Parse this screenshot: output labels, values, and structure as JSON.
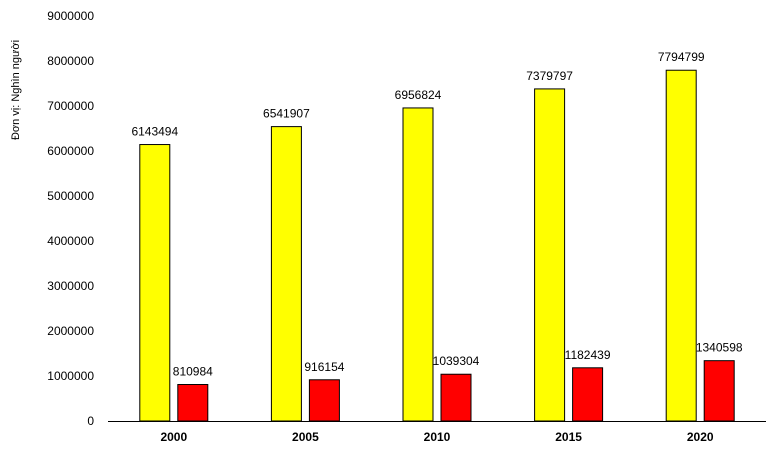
{
  "chart_data": {
    "type": "bar",
    "title": "",
    "xlabel": "",
    "ylabel": "Đơn vị: Nghìn người",
    "ylim": [
      0,
      9000000
    ],
    "yticks": [
      0,
      1000000,
      2000000,
      3000000,
      4000000,
      5000000,
      6000000,
      7000000,
      8000000,
      9000000
    ],
    "grid": false,
    "legend": "none",
    "categories": [
      "2000",
      "2005",
      "2010",
      "2015",
      "2020"
    ],
    "series": [
      {
        "values": [
          6143494,
          6541907,
          6956824,
          7379797,
          7794799
        ],
        "color": "#ffff00"
      },
      {
        "values": [
          810984,
          916154,
          1039304,
          1182439,
          1340598
        ],
        "color": "#ff0000"
      }
    ]
  }
}
